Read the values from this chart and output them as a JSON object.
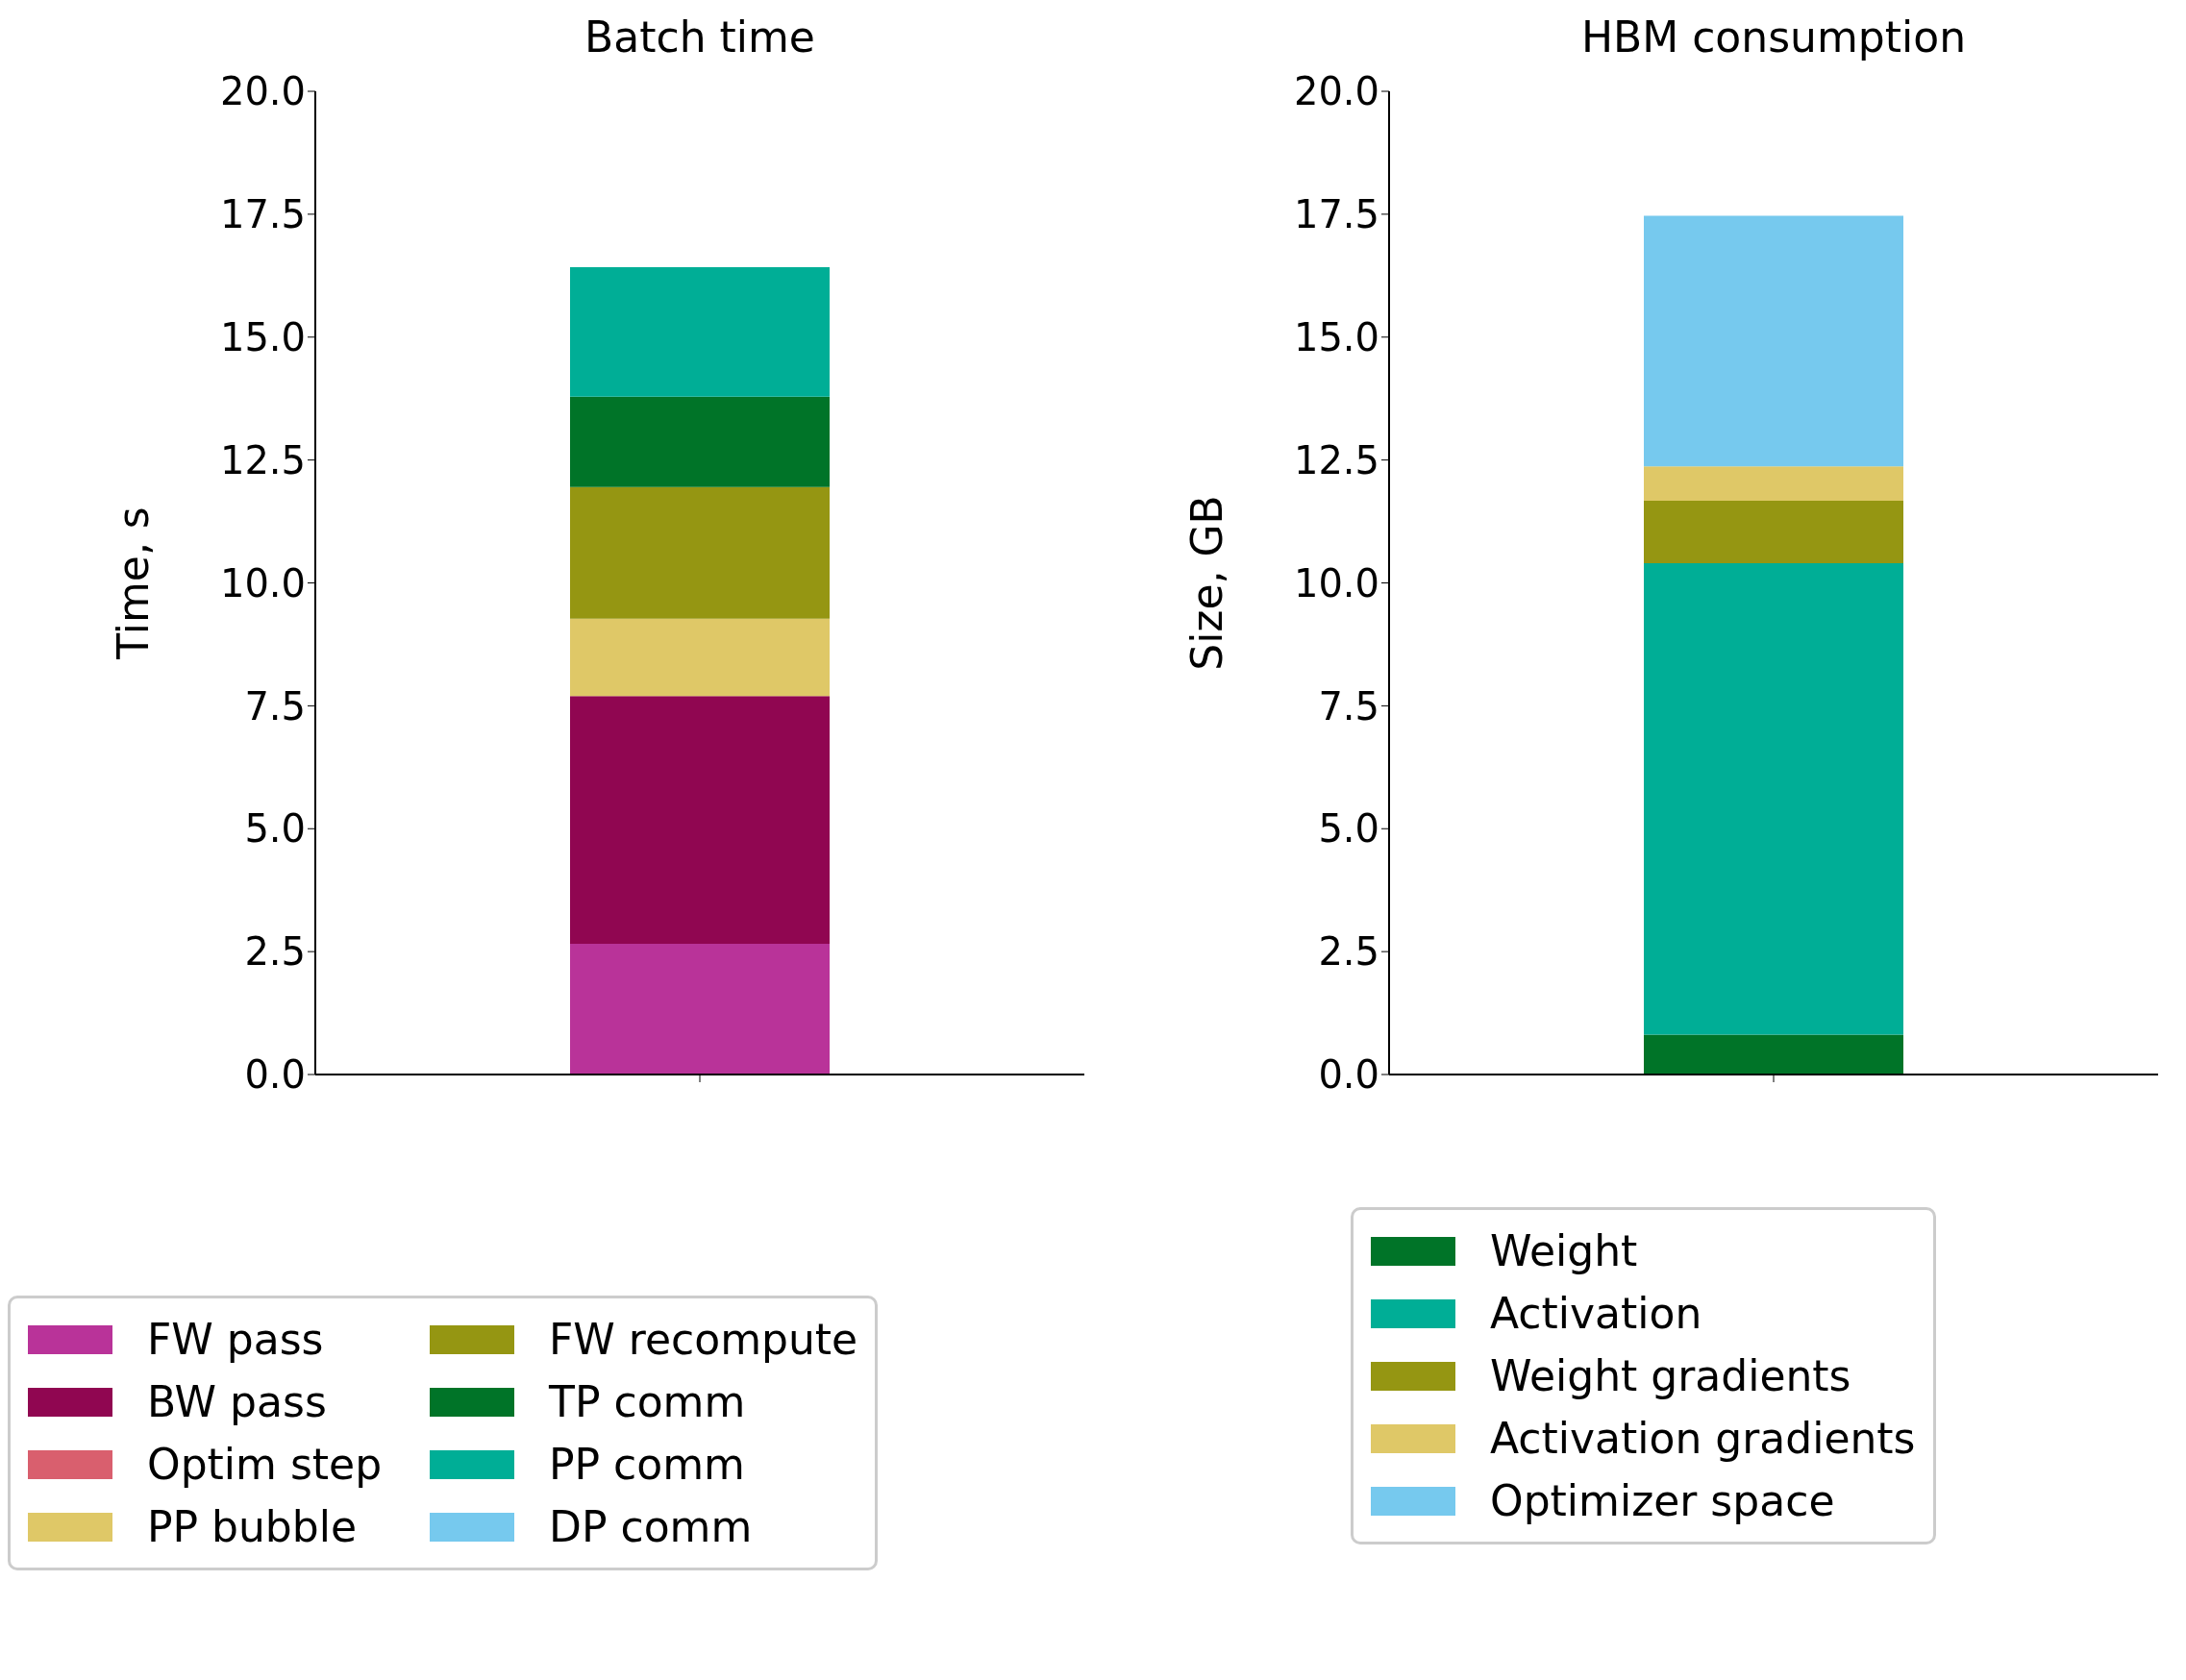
{
  "chart_data": [
    {
      "type": "bar",
      "title": "Batch time",
      "ylabel": "Time, s",
      "categories": [
        null
      ],
      "stacked": true,
      "legend": "bottom",
      "ylim": [
        0,
        20
      ],
      "yticks": [
        {
          "value": 0,
          "label": "0.0"
        },
        {
          "value": 2.5,
          "label": "2.5"
        },
        {
          "value": 5,
          "label": "5.0"
        },
        {
          "value": 7.5,
          "label": "7.5"
        },
        {
          "value": 10,
          "label": "10.0"
        },
        {
          "value": 12.5,
          "label": "12.5"
        },
        {
          "value": 15,
          "label": "15.0"
        },
        {
          "value": 17.5,
          "label": "17.5"
        },
        {
          "value": 20,
          "label": "20.0"
        }
      ],
      "series": [
        {
          "name": "FW pass",
          "color": "#b93399",
          "values": [
            2.66
          ]
        },
        {
          "name": "BW pass",
          "color": "#900651",
          "values": [
            5.04
          ]
        },
        {
          "name": "Optim step",
          "color": "#d95f6e",
          "values": [
            0
          ]
        },
        {
          "name": "PP bubble",
          "color": "#dfc867",
          "values": [
            1.57
          ]
        },
        {
          "name": "FW recompute",
          "color": "#959612",
          "values": [
            2.68
          ]
        },
        {
          "name": "TP comm",
          "color": "#007428",
          "values": [
            1.84
          ]
        },
        {
          "name": "PP comm",
          "color": "#00ae96",
          "values": [
            2.63
          ]
        },
        {
          "name": "DP comm",
          "color": "#76c9ee",
          "values": [
            0
          ]
        }
      ]
    },
    {
      "type": "bar",
      "title": "HBM consumption",
      "ylabel": "Size, GB",
      "categories": [
        null
      ],
      "stacked": true,
      "legend": "bottom",
      "ylim": [
        0,
        20
      ],
      "yticks": [
        {
          "value": 0,
          "label": "0.0"
        },
        {
          "value": 2.5,
          "label": "2.5"
        },
        {
          "value": 5,
          "label": "5.0"
        },
        {
          "value": 7.5,
          "label": "7.5"
        },
        {
          "value": 10,
          "label": "10.0"
        },
        {
          "value": 12.5,
          "label": "12.5"
        },
        {
          "value": 15,
          "label": "15.0"
        },
        {
          "value": 17.5,
          "label": "17.5"
        },
        {
          "value": 20,
          "label": "20.0"
        }
      ],
      "series": [
        {
          "name": "Weight",
          "color": "#007428",
          "values": [
            0.81
          ]
        },
        {
          "name": "Activation",
          "color": "#00ae96",
          "values": [
            9.59
          ]
        },
        {
          "name": "Weight gradients",
          "color": "#959612",
          "values": [
            1.27
          ]
        },
        {
          "name": "Activation gradients",
          "color": "#dfc867",
          "values": [
            0.7
          ]
        },
        {
          "name": "Optimizer space",
          "color": "#76c9ee",
          "values": [
            5.1
          ]
        }
      ]
    }
  ]
}
